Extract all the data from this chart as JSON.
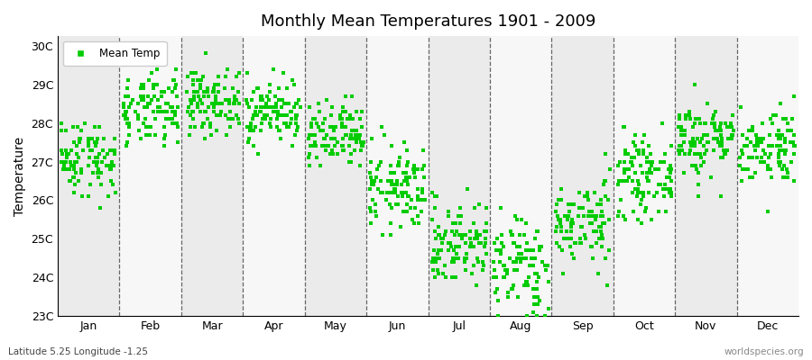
{
  "title": "Monthly Mean Temperatures 1901 - 2009",
  "subtitle": "Latitude 5.25 Longitude -1.25",
  "ylabel": "Temperature",
  "watermark": "worldspecies.org",
  "legend_label": "Mean Temp",
  "marker_color": "#00cc00",
  "marker_size": 3.5,
  "background_color": "#ffffff",
  "band_colors": [
    "#ebebeb",
    "#f7f7f7"
  ],
  "ylim": [
    23,
    30
  ],
  "ytick_labels": [
    "23C",
    "24C",
    "25C",
    "26C",
    "27C",
    "28C",
    "29C",
    "30C"
  ],
  "ytick_values": [
    23,
    24,
    25,
    26,
    27,
    28,
    29,
    30
  ],
  "months": [
    "Jan",
    "Feb",
    "Mar",
    "Apr",
    "May",
    "Jun",
    "Jul",
    "Aug",
    "Sep",
    "Oct",
    "Nov",
    "Dec"
  ],
  "monthly_means": [
    27.1,
    28.3,
    28.55,
    28.3,
    27.6,
    26.3,
    24.9,
    24.3,
    25.4,
    26.6,
    27.6,
    27.4
  ],
  "monthly_stds": [
    0.5,
    0.45,
    0.4,
    0.4,
    0.45,
    0.55,
    0.55,
    0.65,
    0.55,
    0.5,
    0.5,
    0.5
  ],
  "n_years": 109,
  "seed": 42
}
